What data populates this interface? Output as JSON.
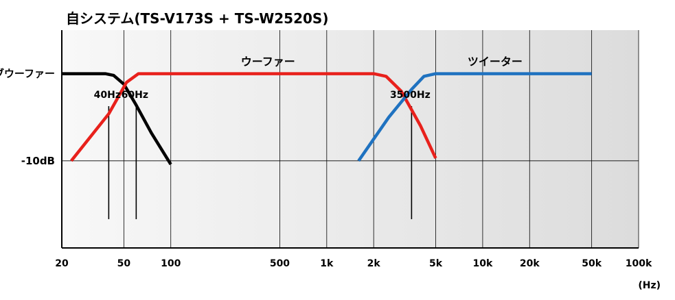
{
  "chart_data": {
    "type": "line",
    "title": "自システム(TS-V173S + TS-W2520S)",
    "x_scale": "log",
    "xlim": [
      20,
      100000
    ],
    "x_unit": "(Hz)",
    "x_ticks": [
      {
        "value": 20,
        "label": "20"
      },
      {
        "value": 50,
        "label": "50"
      },
      {
        "value": 100,
        "label": "100"
      },
      {
        "value": 500,
        "label": "500"
      },
      {
        "value": 1000,
        "label": "1k"
      },
      {
        "value": 2000,
        "label": "2k"
      },
      {
        "value": 5000,
        "label": "5k"
      },
      {
        "value": 10000,
        "label": "10k"
      },
      {
        "value": 20000,
        "label": "20k"
      },
      {
        "value": 50000,
        "label": "50k"
      },
      {
        "value": 100000,
        "label": "100k"
      }
    ],
    "gridlines_x": [
      20,
      50,
      100,
      500,
      1000,
      2000,
      5000,
      10000,
      20000,
      50000,
      100000
    ],
    "ylim": [
      -20,
      5
    ],
    "y_labels": [
      {
        "value": 0,
        "label": "サブウーファー"
      },
      {
        "value": -10,
        "label": "-10dB"
      }
    ],
    "gridlines_y": [
      -10
    ],
    "series": [
      {
        "name": "サブウーファー",
        "color": "#000000",
        "points": [
          [
            20,
            0
          ],
          [
            38,
            0
          ],
          [
            43,
            -0.2
          ],
          [
            50,
            -1.2
          ],
          [
            60,
            -3.6
          ],
          [
            75,
            -6.8
          ],
          [
            100,
            -10.4
          ]
        ]
      },
      {
        "name": "ウーファー",
        "color": "#e8211c",
        "points": [
          [
            23,
            -10
          ],
          [
            40,
            -4.6
          ],
          [
            52,
            -1.0
          ],
          [
            62,
            0
          ],
          [
            2000,
            0
          ],
          [
            2400,
            -0.3
          ],
          [
            3000,
            -2.0
          ],
          [
            4000,
            -6.0
          ],
          [
            5000,
            -9.7
          ]
        ]
      },
      {
        "name": "ツイーター",
        "color": "#1f72c0",
        "points": [
          [
            1600,
            -10
          ],
          [
            2500,
            -5.0
          ],
          [
            3500,
            -1.8
          ],
          [
            4200,
            -0.3
          ],
          [
            5000,
            0
          ],
          [
            50000,
            0
          ]
        ]
      }
    ],
    "crossover_markers": [
      {
        "freq": 40,
        "label": "40Hz"
      },
      {
        "freq": 60,
        "label": "60Hz"
      },
      {
        "freq": 3500,
        "label": "3500Hz"
      }
    ],
    "series_labels": [
      {
        "series": "ウーファー",
        "text": "ウーファー",
        "at_freq": 420
      },
      {
        "series": "ツイーター",
        "text": "ツイーター",
        "at_freq": 12000
      }
    ],
    "grid": true,
    "background": {
      "plot_fill_start": "#f8f8f8",
      "plot_fill_end": "#dcdcdc",
      "axis_color": "#000000"
    }
  }
}
